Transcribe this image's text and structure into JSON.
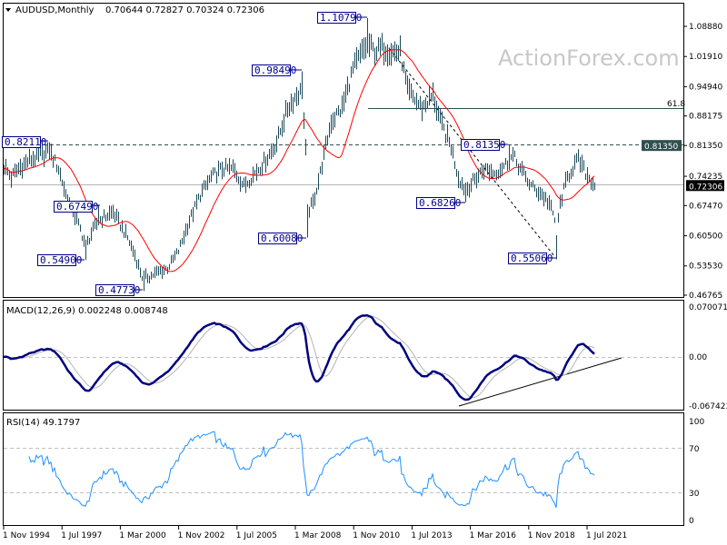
{
  "header": {
    "symbol_timeframe": "AUDUSD,Monthly",
    "ohlc": "0.70644 0.72827 0.70324 0.72306"
  },
  "watermark": "ActionForex.com",
  "colors": {
    "bars": "#1b4a5a",
    "ma": "#ff0000",
    "macd": "#000080",
    "signal": "#b4b4b4",
    "rsi": "#1e90ff",
    "label_border": "#00008b"
  },
  "chart_data": [
    {
      "type": "bar",
      "title": "AUDUSD,Monthly",
      "x_ticks": [
        "1 Nov 1994",
        "1 Jul 1997",
        "1 Mar 2000",
        "1 Nov 2002",
        "1 Jul 2005",
        "1 Mar 2008",
        "1 Nov 2010",
        "1 Jul 2013",
        "1 Mar 2016",
        "1 Nov 2018",
        "1 Jul 2021"
      ],
      "y_ticks": [
        "1.08880",
        "1.01910",
        "0.94940",
        "0.88175",
        "0.81350",
        "0.74235",
        "0.67470",
        "0.60500",
        "0.53530",
        "0.46765"
      ],
      "ylim": [
        0.46765,
        1.0888
      ],
      "price_path_months_from_nov_1994": [
        [
          0,
          0.765
        ],
        [
          4,
          0.74
        ],
        [
          8,
          0.76
        ],
        [
          14,
          0.78
        ],
        [
          20,
          0.79
        ],
        [
          25,
          0.8
        ],
        [
          30,
          0.76
        ],
        [
          34,
          0.7
        ],
        [
          38,
          0.66
        ],
        [
          42,
          0.62
        ],
        [
          45,
          0.58
        ],
        [
          48,
          0.61
        ],
        [
          52,
          0.64
        ],
        [
          56,
          0.65
        ],
        [
          60,
          0.66
        ],
        [
          64,
          0.63
        ],
        [
          68,
          0.6
        ],
        [
          72,
          0.56
        ],
        [
          76,
          0.51
        ],
        [
          80,
          0.51
        ],
        [
          84,
          0.52
        ],
        [
          90,
          0.53
        ],
        [
          96,
          0.57
        ],
        [
          102,
          0.64
        ],
        [
          108,
          0.7
        ],
        [
          114,
          0.74
        ],
        [
          120,
          0.76
        ],
        [
          126,
          0.76
        ],
        [
          132,
          0.72
        ],
        [
          138,
          0.75
        ],
        [
          144,
          0.78
        ],
        [
          150,
          0.82
        ],
        [
          156,
          0.9
        ],
        [
          161,
          0.93
        ],
        [
          164,
          0.94
        ],
        [
          166,
          0.8
        ],
        [
          167,
          0.66
        ],
        [
          170,
          0.68
        ],
        [
          174,
          0.75
        ],
        [
          180,
          0.87
        ],
        [
          186,
          0.9
        ],
        [
          192,
          0.99
        ],
        [
          196,
          1.02
        ],
        [
          200,
          1.05
        ],
        [
          204,
          1.03
        ],
        [
          208,
          1.04
        ],
        [
          214,
          1.03
        ],
        [
          218,
          1.03
        ],
        [
          222,
          0.94
        ],
        [
          226,
          0.92
        ],
        [
          230,
          0.9
        ],
        [
          236,
          0.93
        ],
        [
          240,
          0.87
        ],
        [
          246,
          0.81
        ],
        [
          250,
          0.74
        ],
        [
          254,
          0.71
        ],
        [
          258,
          0.73
        ],
        [
          264,
          0.76
        ],
        [
          270,
          0.75
        ],
        [
          276,
          0.77
        ],
        [
          280,
          0.79
        ],
        [
          284,
          0.76
        ],
        [
          290,
          0.72
        ],
        [
          296,
          0.7
        ],
        [
          300,
          0.68
        ],
        [
          303,
          0.64
        ],
        [
          304,
          0.6
        ],
        [
          306,
          0.68
        ],
        [
          310,
          0.74
        ],
        [
          314,
          0.77
        ],
        [
          316,
          0.78
        ],
        [
          320,
          0.75
        ],
        [
          325,
          0.722
        ]
      ],
      "pivots": [
        {
          "month": 25,
          "kind": "high",
          "label": "0.82110"
        },
        {
          "month": 52,
          "kind": "high",
          "label": "0.67490"
        },
        {
          "month": 45,
          "kind": "low",
          "label": "0.54900"
        },
        {
          "month": 77,
          "kind": "low",
          "label": "0.47730"
        },
        {
          "month": 164,
          "kind": "high",
          "label": "0.98490"
        },
        {
          "month": 167,
          "kind": "low",
          "label": "0.60080"
        },
        {
          "month": 200,
          "kind": "high",
          "label": "1.10790"
        },
        {
          "month": 254,
          "kind": "low",
          "label": "0.68260"
        },
        {
          "month": 278,
          "kind": "high",
          "label": "0.81350"
        },
        {
          "month": 304,
          "kind": "low",
          "label": "0.55060"
        }
      ],
      "levels": {
        "resistance": "0.81350",
        "current": "0.72306",
        "fib_label": "61.8",
        "fib_price": 0.8899
      }
    },
    {
      "type": "line",
      "title": "MACD(12,26,9) 0.002248 0.008748",
      "y_ticks": [
        "0.070071",
        "0.00",
        "-0.067423"
      ],
      "ylim": [
        -0.067423,
        0.070071
      ]
    },
    {
      "type": "line",
      "title": "RSI(14) 49.1797",
      "y_ticks": [
        "100",
        "70",
        "30",
        "0"
      ],
      "ylim": [
        0,
        100
      ]
    }
  ]
}
